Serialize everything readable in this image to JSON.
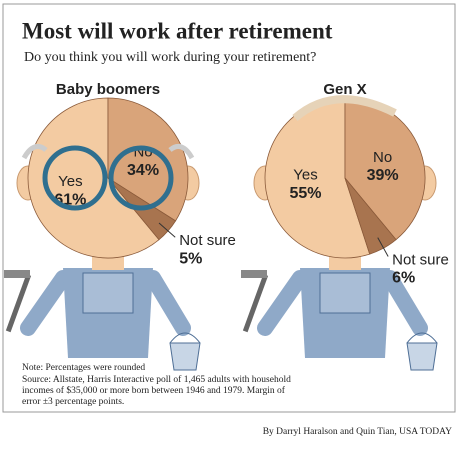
{
  "header": {
    "title": "Most will work after retirement",
    "subtitle": "Do you think you will work during your retirement?"
  },
  "chart_data": [
    {
      "type": "pie",
      "title": "Baby boomers",
      "categories": [
        "Yes",
        "No",
        "Not sure"
      ],
      "values": [
        61,
        34,
        5
      ],
      "value_labels": [
        "61%",
        "34%",
        "5%"
      ],
      "colors": [
        "#f3cba2",
        "#d9a47a",
        "#a8744f"
      ],
      "glasses": true
    },
    {
      "type": "pie",
      "title": "Gen X",
      "categories": [
        "Yes",
        "No",
        "Not sure"
      ],
      "values": [
        55,
        39,
        6
      ],
      "value_labels": [
        "55%",
        "39%",
        "6%"
      ],
      "colors": [
        "#f3cba2",
        "#d9a47a",
        "#a8744f"
      ],
      "glasses": false
    }
  ],
  "footer": {
    "note": "Note: Percentages were rounded",
    "source": [
      "Source: Allstate, Harris Interactive poll of 1,465 adults with household",
      "incomes of $35,000 or more born between 1946 and 1979. Margin of",
      "error ±3 percentage points."
    ],
    "credit": "By Darryl Haralson and Quin Tian, USA TODAY"
  }
}
